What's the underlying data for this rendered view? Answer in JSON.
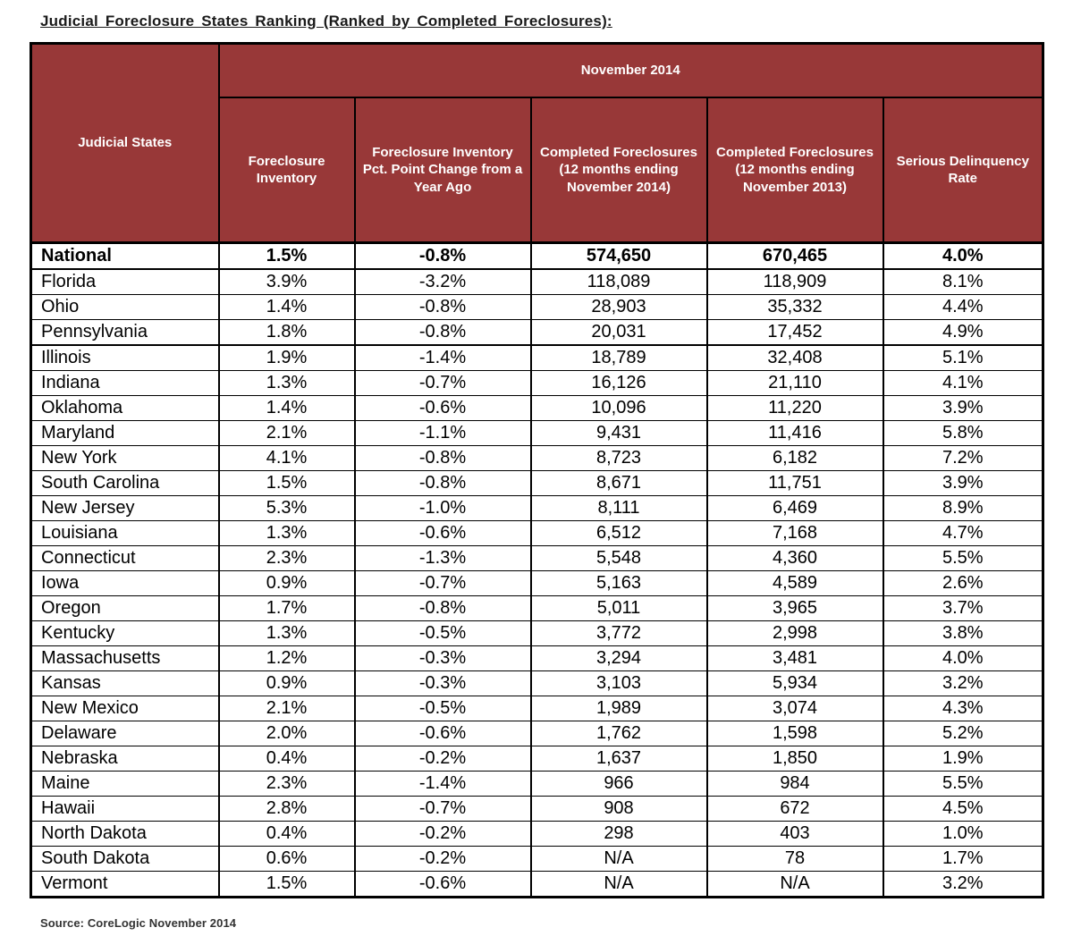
{
  "title": "Judicial Foreclosure States Ranking (Ranked by Completed Foreclosures):",
  "source": "Source: CoreLogic November 2014",
  "colors": {
    "header_bg": "#983838",
    "header_text": "#FFFFFF",
    "border": "#000000",
    "body_bg": "#FFFFFF",
    "body_text": "#000000"
  },
  "chart_data": {
    "type": "table",
    "title": "Judicial Foreclosure States Ranking (Ranked by Completed Foreclosures):",
    "row_header": "Judicial States",
    "group_header": "November 2014",
    "columns": [
      "Foreclosure Inventory",
      "Foreclosure Inventory Pct. Point Change from a Year Ago",
      "Completed Foreclosures (12 months ending November 2014)",
      "Completed Foreclosures (12 months ending November 2013)",
      "Serious Delinquency Rate"
    ],
    "rows": [
      {
        "state": "National",
        "values": [
          "1.5%",
          "-0.8%",
          "574,650",
          "670,465",
          "4.0%"
        ]
      },
      {
        "state": "Florida",
        "values": [
          "3.9%",
          "-3.2%",
          "118,089",
          "118,909",
          "8.1%"
        ]
      },
      {
        "state": "Ohio",
        "values": [
          "1.4%",
          "-0.8%",
          "28,903",
          "35,332",
          "4.4%"
        ]
      },
      {
        "state": "Pennsylvania",
        "values": [
          "1.8%",
          "-0.8%",
          "20,031",
          "17,452",
          "4.9%"
        ]
      },
      {
        "state": "Illinois",
        "values": [
          "1.9%",
          "-1.4%",
          "18,789",
          "32,408",
          "5.1%"
        ]
      },
      {
        "state": "Indiana",
        "values": [
          "1.3%",
          "-0.7%",
          "16,126",
          "21,110",
          "4.1%"
        ]
      },
      {
        "state": "Oklahoma",
        "values": [
          "1.4%",
          "-0.6%",
          "10,096",
          "11,220",
          "3.9%"
        ]
      },
      {
        "state": "Maryland",
        "values": [
          "2.1%",
          "-1.1%",
          "9,431",
          "11,416",
          "5.8%"
        ]
      },
      {
        "state": "New York",
        "values": [
          "4.1%",
          "-0.8%",
          "8,723",
          "6,182",
          "7.2%"
        ]
      },
      {
        "state": "South Carolina",
        "values": [
          "1.5%",
          "-0.8%",
          "8,671",
          "11,751",
          "3.9%"
        ]
      },
      {
        "state": "New Jersey",
        "values": [
          "5.3%",
          "-1.0%",
          "8,111",
          "6,469",
          "8.9%"
        ]
      },
      {
        "state": "Louisiana",
        "values": [
          "1.3%",
          "-0.6%",
          "6,512",
          "7,168",
          "4.7%"
        ]
      },
      {
        "state": "Connecticut",
        "values": [
          "2.3%",
          "-1.3%",
          "5,548",
          "4,360",
          "5.5%"
        ]
      },
      {
        "state": "Iowa",
        "values": [
          "0.9%",
          "-0.7%",
          "5,163",
          "4,589",
          "2.6%"
        ]
      },
      {
        "state": "Oregon",
        "values": [
          "1.7%",
          "-0.8%",
          "5,011",
          "3,965",
          "3.7%"
        ]
      },
      {
        "state": "Kentucky",
        "values": [
          "1.3%",
          "-0.5%",
          "3,772",
          "2,998",
          "3.8%"
        ]
      },
      {
        "state": "Massachusetts",
        "values": [
          "1.2%",
          "-0.3%",
          "3,294",
          "3,481",
          "4.0%"
        ]
      },
      {
        "state": "Kansas",
        "values": [
          "0.9%",
          "-0.3%",
          "3,103",
          "5,934",
          "3.2%"
        ]
      },
      {
        "state": "New Mexico",
        "values": [
          "2.1%",
          "-0.5%",
          "1,989",
          "3,074",
          "4.3%"
        ]
      },
      {
        "state": "Delaware",
        "values": [
          "2.0%",
          "-0.6%",
          "1,762",
          "1,598",
          "5.2%"
        ]
      },
      {
        "state": "Nebraska",
        "values": [
          "0.4%",
          "-0.2%",
          "1,637",
          "1,850",
          "1.9%"
        ]
      },
      {
        "state": "Maine",
        "values": [
          "2.3%",
          "-1.4%",
          "966",
          "984",
          "5.5%"
        ]
      },
      {
        "state": "Hawaii",
        "values": [
          "2.8%",
          "-0.7%",
          "908",
          "672",
          "4.5%"
        ]
      },
      {
        "state": "North Dakota",
        "values": [
          "0.4%",
          "-0.2%",
          "298",
          "403",
          "1.0%"
        ]
      },
      {
        "state": "South Dakota",
        "values": [
          "0.6%",
          "-0.2%",
          "N/A",
          "78",
          "1.7%"
        ]
      },
      {
        "state": "Vermont",
        "values": [
          "1.5%",
          "-0.6%",
          "N/A",
          "N/A",
          "3.2%"
        ]
      }
    ],
    "source": "Source: CoreLogic November 2014"
  }
}
